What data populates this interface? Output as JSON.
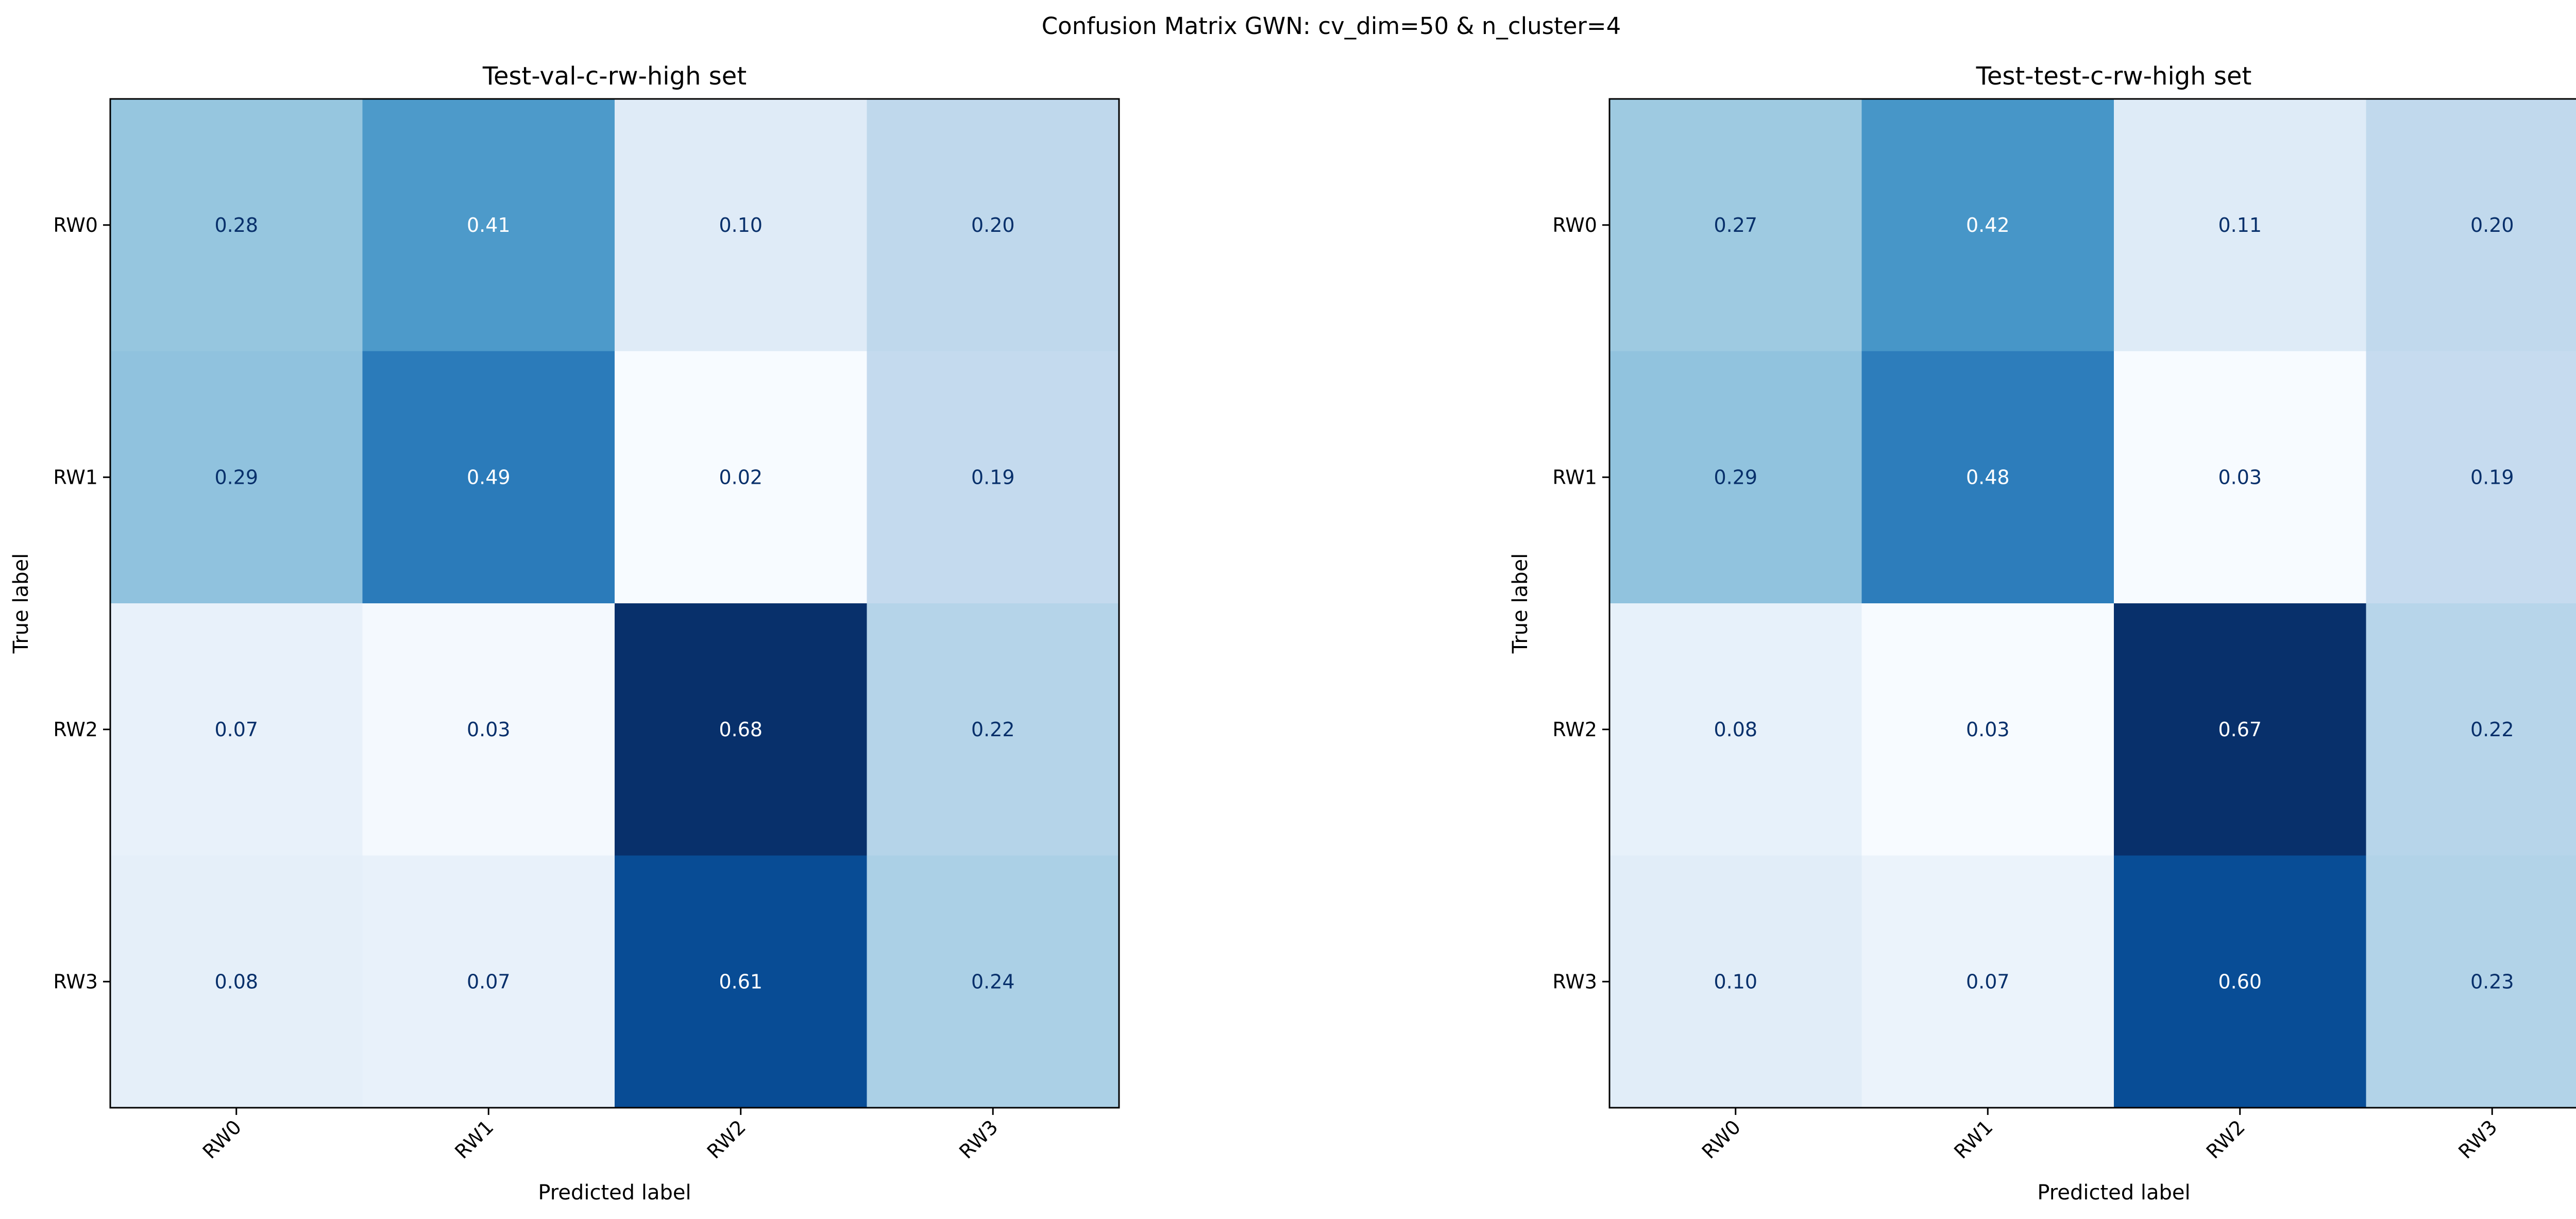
{
  "figure": {
    "suptitle": "Confusion Matrix GWN: cv_dim=50 & n_cluster=4"
  },
  "chart_data": [
    {
      "type": "heatmap",
      "title": "Test-val-c-rw-high set",
      "xlabel": "Predicted label",
      "ylabel": "True label",
      "x_categories": [
        "RW0",
        "RW1",
        "RW2",
        "RW3"
      ],
      "y_categories": [
        "RW0",
        "RW1",
        "RW2",
        "RW3"
      ],
      "values": [
        [
          0.28,
          0.41,
          0.1,
          0.2
        ],
        [
          0.29,
          0.49,
          0.02,
          0.19
        ],
        [
          0.07,
          0.03,
          0.68,
          0.22
        ],
        [
          0.08,
          0.07,
          0.61,
          0.24
        ]
      ],
      "value_format": "2 decimals",
      "colormap": "Blues",
      "colorbar": false,
      "grid": false,
      "x_tick_rotation_deg": 45
    },
    {
      "type": "heatmap",
      "title": "Test-test-c-rw-high set",
      "xlabel": "Predicted label",
      "ylabel": "True label",
      "x_categories": [
        "RW0",
        "RW1",
        "RW2",
        "RW3"
      ],
      "y_categories": [
        "RW0",
        "RW1",
        "RW2",
        "RW3"
      ],
      "values": [
        [
          0.27,
          0.42,
          0.11,
          0.2
        ],
        [
          0.29,
          0.48,
          0.03,
          0.19
        ],
        [
          0.08,
          0.03,
          0.67,
          0.22
        ],
        [
          0.1,
          0.07,
          0.6,
          0.23
        ]
      ],
      "value_format": "2 decimals",
      "colormap": "Blues",
      "colorbar": false,
      "grid": false,
      "x_tick_rotation_deg": 45
    }
  ],
  "colors": {
    "low": "#f1f7fd",
    "mid": "#6baed6",
    "high": "#08306b",
    "text_dark": "#08306b",
    "text_light": "#ffffff",
    "axis": "#000000"
  }
}
